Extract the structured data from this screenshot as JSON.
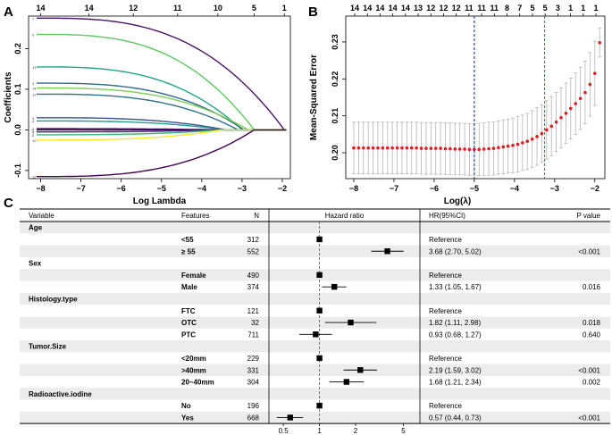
{
  "panel_labels": {
    "a": "A",
    "b": "B",
    "c": "C"
  },
  "chart_data": [
    {
      "type": "line",
      "id": "lasso-coefficient-paths",
      "title": "",
      "xlabel": "Log Lambda",
      "ylabel": "Coefficients",
      "xlim": [
        -8.3,
        -1.8
      ],
      "ylim": [
        -0.12,
        0.28
      ],
      "x_ticks": [
        -8,
        -7,
        -6,
        -5,
        -4,
        -3,
        -2
      ],
      "y_ticks": [
        -0.1,
        0.0,
        0.1,
        0.2
      ],
      "y_tick_labels": [
        "-0.1",
        "0.0",
        "0.1",
        "0.2"
      ],
      "top_axis": {
        "positions": [
          -8,
          -6.8,
          -5.7,
          -4.6,
          -3.6,
          -2.7,
          -1.95
        ],
        "labels": [
          "14",
          "14",
          "12",
          "11",
          "10",
          "5",
          "1"
        ]
      },
      "series": [
        {
          "name": "7",
          "color": "#4a1466",
          "start": 0.275,
          "zero_at": -1.95
        },
        {
          "name": "9",
          "color": "#5ec962",
          "start": 0.235,
          "zero_at": -2.7
        },
        {
          "name": "13",
          "color": "#21a585",
          "start": 0.155,
          "zero_at": -3.0
        },
        {
          "name": "3",
          "color": "#31688e",
          "start": 0.115,
          "zero_at": -2.95
        },
        {
          "name": "14",
          "color": "#7ad151",
          "start": 0.103,
          "zero_at": -2.85
        },
        {
          "name": "12",
          "color": "#2c728e",
          "start": 0.088,
          "zero_at": -3.1
        },
        {
          "name": "5",
          "color": "#3b528b",
          "start": 0.03,
          "zero_at": -3.4
        },
        {
          "name": "4",
          "color": "#1f9e89",
          "start": 0.022,
          "zero_at": -3.45
        },
        {
          "name": "1",
          "color": "#440154",
          "start": 0.0,
          "zero_at": -3.5
        },
        {
          "name": "2",
          "color": "#471063",
          "start": 0.003,
          "zero_at": -3.6
        },
        {
          "name": "6",
          "color": "#482878",
          "start": -0.005,
          "zero_at": -3.65
        },
        {
          "name": "8",
          "color": "#35b779",
          "start": -0.012,
          "zero_at": -3.55
        },
        {
          "name": "10",
          "color": "#fde725",
          "start": -0.025,
          "zero_at": -3.5
        },
        {
          "name": "11",
          "color": "#440154",
          "start": -0.115,
          "zero_at": -2.7
        }
      ]
    },
    {
      "type": "scatter",
      "id": "cv-mse",
      "title": "",
      "xlabel": "Log(λ)",
      "ylabel": "Mean-Squared Error",
      "xlim": [
        -8.2,
        -1.75
      ],
      "ylim": [
        0.193,
        0.237
      ],
      "x_ticks": [
        -8,
        -7,
        -6,
        -5,
        -4,
        -3,
        -2
      ],
      "y_ticks": [
        0.2,
        0.21,
        0.22,
        0.23
      ],
      "y_tick_labels": [
        "0.20",
        "0.21",
        "0.22",
        "0.23"
      ],
      "top_axis_labels": [
        "14",
        "14",
        "14",
        "14",
        "14",
        "13",
        "12",
        "12",
        "12",
        "11",
        "11",
        "11",
        "8",
        "7",
        "5",
        "5",
        "3",
        "1",
        "1",
        "1"
      ],
      "lambda_min": -5.0,
      "lambda_1se": -3.25,
      "x": [
        -8.0,
        -7.88,
        -7.76,
        -7.64,
        -7.52,
        -7.4,
        -7.28,
        -7.16,
        -7.04,
        -6.92,
        -6.8,
        -6.68,
        -6.56,
        -6.44,
        -6.32,
        -6.2,
        -6.08,
        -5.96,
        -5.84,
        -5.72,
        -5.6,
        -5.48,
        -5.36,
        -5.24,
        -5.12,
        -5.0,
        -4.88,
        -4.76,
        -4.64,
        -4.52,
        -4.4,
        -4.28,
        -4.16,
        -4.04,
        -3.92,
        -3.8,
        -3.68,
        -3.56,
        -3.44,
        -3.32,
        -3.2,
        -3.08,
        -2.96,
        -2.84,
        -2.72,
        -2.6,
        -2.48,
        -2.36,
        -2.24,
        -2.12,
        -2.0,
        -1.88
      ],
      "mse": [
        0.2013,
        0.2013,
        0.2013,
        0.2013,
        0.2013,
        0.2013,
        0.2013,
        0.2013,
        0.2013,
        0.2013,
        0.2013,
        0.2013,
        0.2013,
        0.2013,
        0.2012,
        0.2012,
        0.2012,
        0.2012,
        0.2012,
        0.2011,
        0.2011,
        0.201,
        0.201,
        0.201,
        0.2009,
        0.2009,
        0.2009,
        0.201,
        0.2011,
        0.2012,
        0.2014,
        0.2016,
        0.2018,
        0.202,
        0.2023,
        0.2027,
        0.2031,
        0.2037,
        0.2044,
        0.2052,
        0.2062,
        0.2072,
        0.2083,
        0.2095,
        0.2107,
        0.212,
        0.2133,
        0.2147,
        0.2163,
        0.2185,
        0.2215,
        0.2298
      ],
      "se": [
        0.007,
        0.007,
        0.007,
        0.007,
        0.007,
        0.007,
        0.007,
        0.007,
        0.007,
        0.007,
        0.007,
        0.007,
        0.007,
        0.007,
        0.007,
        0.007,
        0.007,
        0.007,
        0.007,
        0.007,
        0.007,
        0.007,
        0.007,
        0.007,
        0.007,
        0.007,
        0.0071,
        0.0071,
        0.0072,
        0.0072,
        0.0072,
        0.0073,
        0.0073,
        0.0074,
        0.0075,
        0.0075,
        0.0076,
        0.0077,
        0.0078,
        0.0078,
        0.0079,
        0.008,
        0.008,
        0.0081,
        0.0082,
        0.0082,
        0.0083,
        0.0084,
        0.0085,
        0.0086,
        0.0087,
        0.0039
      ]
    },
    {
      "type": "table",
      "id": "forest-plot",
      "headers": {
        "variable": "Variable",
        "features": "Features",
        "n": "N",
        "hr_plot": "Hazard ratio",
        "hr_ci": "HR(95%CI)",
        "p": "P value"
      },
      "x_scale": "log",
      "xlim": [
        0.42,
        6.2
      ],
      "x_ticks": [
        0.5,
        1,
        2,
        5
      ],
      "x_tick_labels": [
        "0.5",
        "1",
        "2",
        "5"
      ],
      "reference_line": 1,
      "rows": [
        {
          "kind": "group",
          "variable": "Age"
        },
        {
          "kind": "item",
          "feature": "<55",
          "n": "312",
          "hr": 1,
          "lo": 1,
          "hi": 1,
          "ci_text": "Reference",
          "p": ""
        },
        {
          "kind": "item",
          "feature": "≥ 55",
          "n": "552",
          "hr": 3.68,
          "lo": 2.7,
          "hi": 5.02,
          "ci_text": "3.68 (2.70, 5.02)",
          "p": "<0.001"
        },
        {
          "kind": "group",
          "variable": "Sex"
        },
        {
          "kind": "item",
          "feature": "Female",
          "n": "490",
          "hr": 1,
          "lo": 1,
          "hi": 1,
          "ci_text": "Reference",
          "p": ""
        },
        {
          "kind": "item",
          "feature": "Male",
          "n": "374",
          "hr": 1.33,
          "lo": 1.05,
          "hi": 1.67,
          "ci_text": "1.33 (1.05, 1.67)",
          "p": "0.016"
        },
        {
          "kind": "group",
          "variable": "Histology.type"
        },
        {
          "kind": "item",
          "feature": "FTC",
          "n": "121",
          "hr": 1,
          "lo": 1,
          "hi": 1,
          "ci_text": "Reference",
          "p": ""
        },
        {
          "kind": "item",
          "feature": "OTC",
          "n": "32",
          "hr": 1.82,
          "lo": 1.11,
          "hi": 2.98,
          "ci_text": "1.82 (1.11, 2.98)",
          "p": "0.018"
        },
        {
          "kind": "item",
          "feature": "PTC",
          "n": "711",
          "hr": 0.93,
          "lo": 0.68,
          "hi": 1.27,
          "ci_text": "0.93 (0.68, 1.27)",
          "p": "0.640"
        },
        {
          "kind": "group",
          "variable": "Tumor.Size"
        },
        {
          "kind": "item",
          "feature": "<20mm",
          "n": "229",
          "hr": 1,
          "lo": 1,
          "hi": 1,
          "ci_text": "Reference",
          "p": ""
        },
        {
          "kind": "item",
          "feature": ">40mm",
          "n": "331",
          "hr": 2.19,
          "lo": 1.59,
          "hi": 3.02,
          "ci_text": "2.19 (1.59, 3.02)",
          "p": "<0.001"
        },
        {
          "kind": "item",
          "feature": "20~40mm",
          "n": "304",
          "hr": 1.68,
          "lo": 1.21,
          "hi": 2.34,
          "ci_text": "1.68 (1.21, 2.34)",
          "p": "0.002"
        },
        {
          "kind": "group",
          "variable": "Radioactive.iodine"
        },
        {
          "kind": "item",
          "feature": "No",
          "n": "196",
          "hr": 1,
          "lo": 1,
          "hi": 1,
          "ci_text": "Reference",
          "p": ""
        },
        {
          "kind": "item",
          "feature": "Yes",
          "n": "668",
          "hr": 0.57,
          "lo": 0.44,
          "hi": 0.73,
          "ci_text": "0.57 (0.44, 0.73)",
          "p": "<0.001"
        }
      ]
    }
  ]
}
